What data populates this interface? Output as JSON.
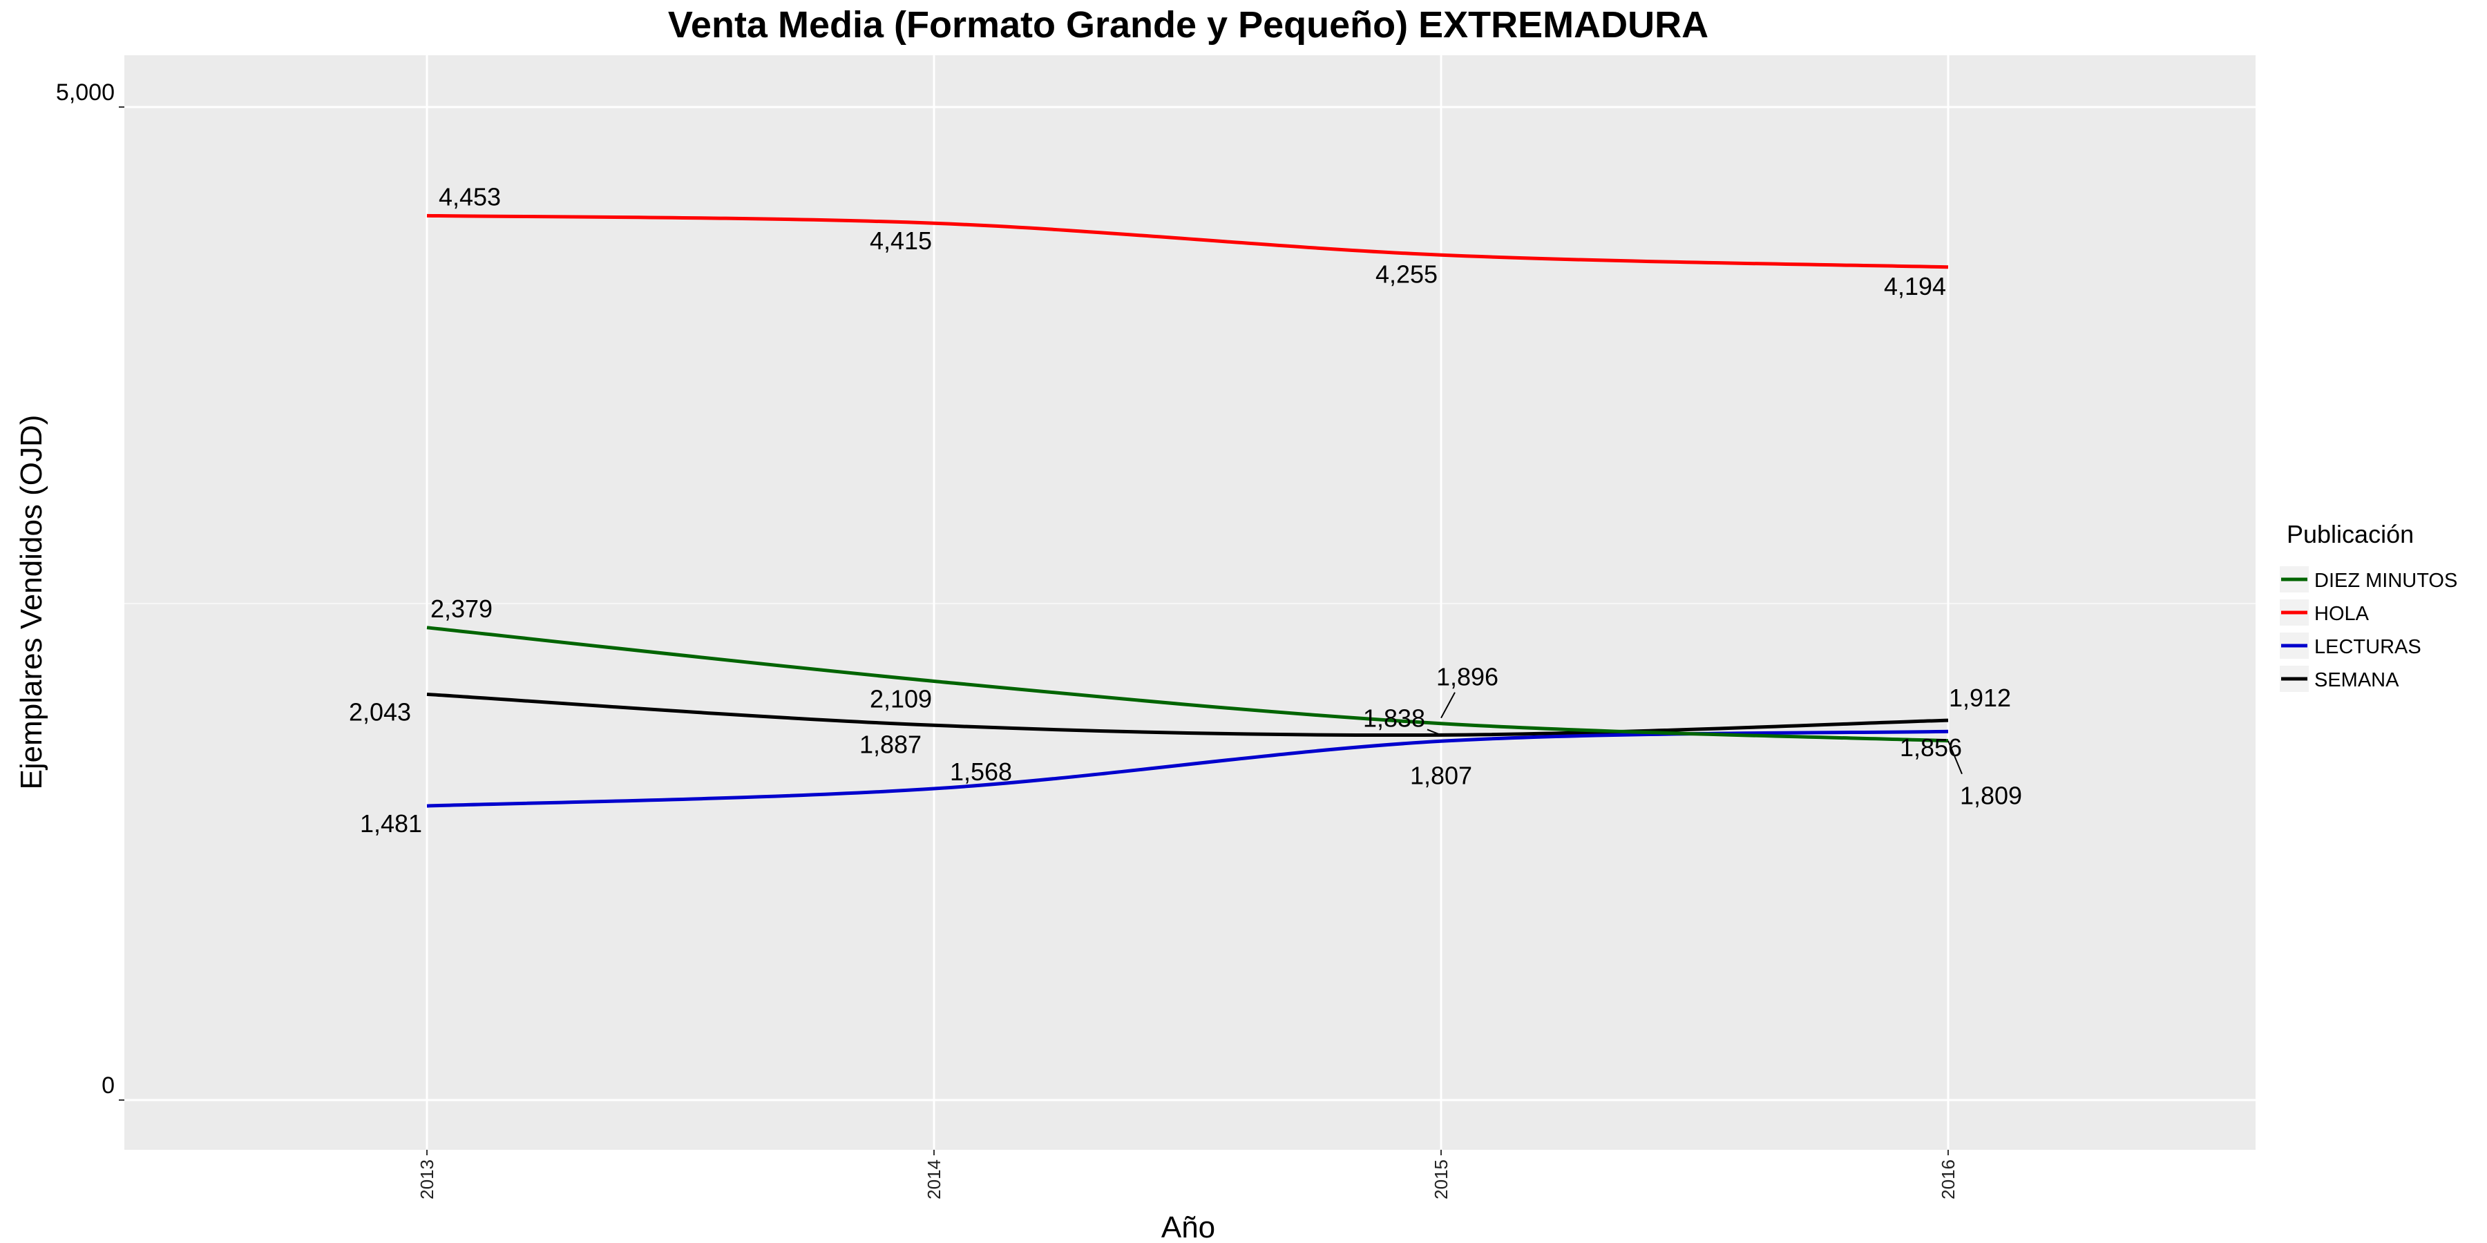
{
  "chart_data": {
    "type": "line",
    "title": "Venta Media (Formato Grande y Pequeño)  EXTREMADURA",
    "xlabel": "Año",
    "ylabel": "Ejemplares Vendidos (OJD)",
    "categories": [
      "2013",
      "2014",
      "2015",
      "2016"
    ],
    "ylim": [
      0,
      5000
    ],
    "yticks": [
      {
        "value": 0,
        "label": "0"
      },
      {
        "value": 5000,
        "label": "5,000"
      }
    ],
    "grid": true,
    "legend": {
      "title": "Publicación",
      "placement": "right"
    },
    "series": [
      {
        "name": "DIEZ MINUTOS",
        "color": "#006400",
        "values": [
          2379,
          2109,
          1896,
          1809
        ],
        "labels": [
          "2,379",
          "2,109",
          "1,896",
          "1,809"
        ]
      },
      {
        "name": "HOLA",
        "color": "#ff0000",
        "values": [
          4453,
          4415,
          4255,
          4194
        ],
        "labels": [
          "4,453",
          "4,415",
          "4,255",
          "4,194"
        ]
      },
      {
        "name": "LECTURAS",
        "color": "#0000cd",
        "values": [
          1481,
          1568,
          1807,
          1856
        ],
        "labels": [
          "1,481",
          "1,568",
          "1,807",
          "1,856"
        ]
      },
      {
        "name": "SEMANA",
        "color": "#000000",
        "values": [
          2043,
          1887,
          1838,
          1912
        ],
        "labels": [
          "2,043",
          "1,887",
          "1,838",
          "1,912"
        ]
      }
    ]
  }
}
